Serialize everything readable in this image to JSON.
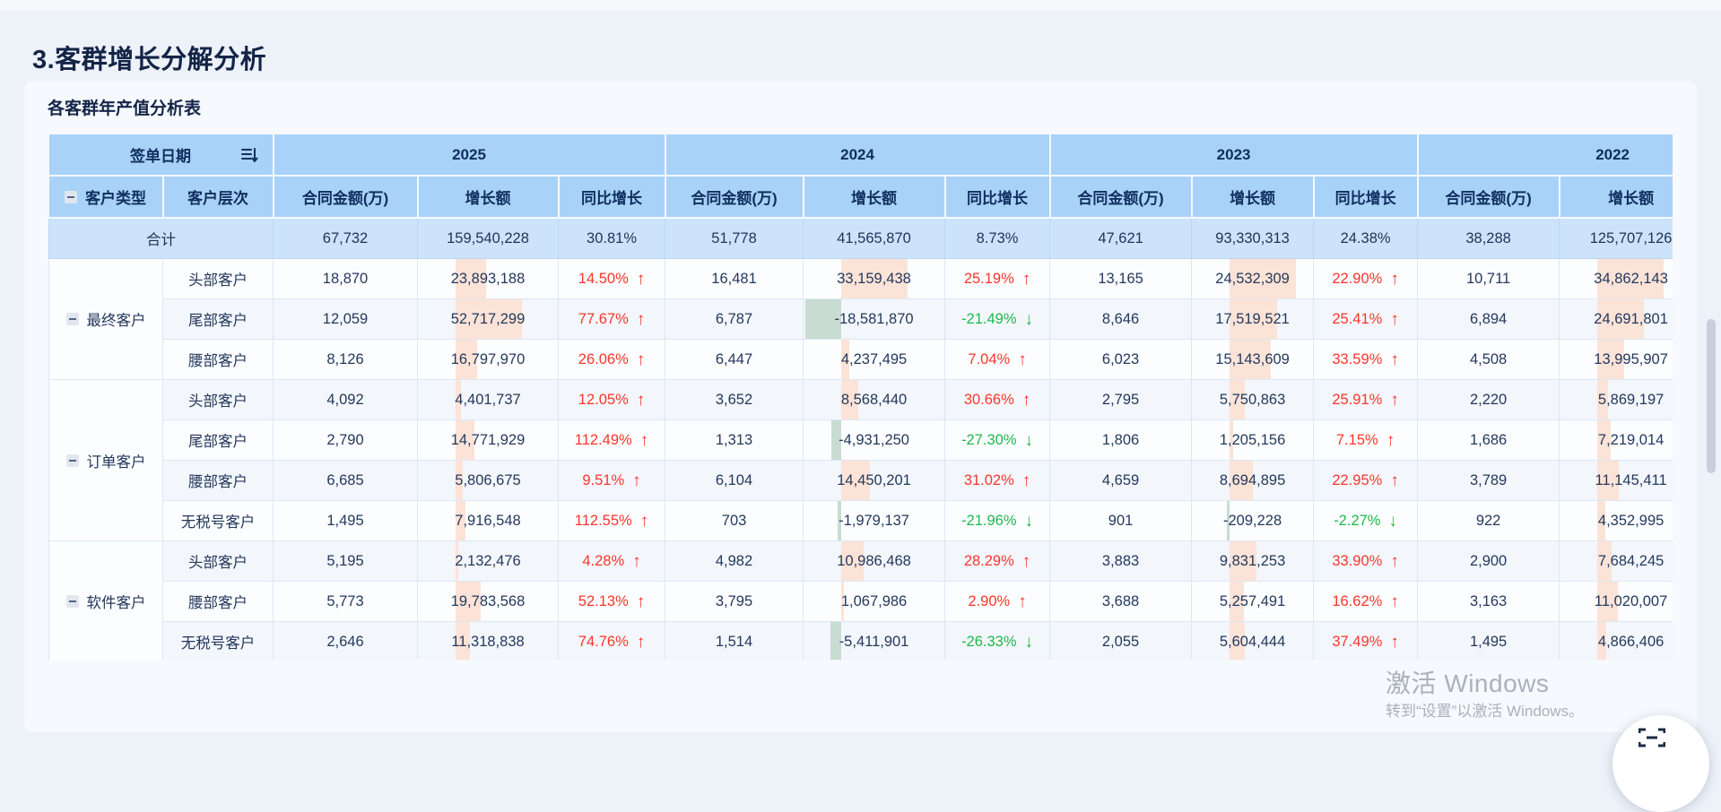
{
  "page": {
    "title": "3.客群增长分解分析"
  },
  "card": {
    "subtitle": "各客群年产值分析表"
  },
  "table": {
    "sign_date_label": "签单日期",
    "sort_icon": "sort-descending-icon",
    "collapse_icon": "minus",
    "years": [
      "2025",
      "2024",
      "2023",
      "2022"
    ],
    "sub_headers": {
      "type": "客户类型",
      "level": "客户层次",
      "amount": "合同金额(万)",
      "growth": "增长额",
      "yoy": "同比增长"
    },
    "total_label": "合计",
    "total_row": [
      {
        "amount": "67,732",
        "growth": "159,540,228",
        "yoy": "30.81%"
      },
      {
        "amount": "51,778",
        "growth": "41,565,870",
        "yoy": "8.73%"
      },
      {
        "amount": "47,621",
        "growth": "93,330,313",
        "yoy": "24.38%"
      },
      {
        "amount": "38,288",
        "growth": "125,707,126",
        "yoy": ""
      }
    ],
    "groups": [
      {
        "type": "最终客户",
        "rows": [
          {
            "level": "头部客户",
            "cells": [
              {
                "amount": "18,870",
                "growth": "23,893,188",
                "yoy": "14.50%",
                "dir": "up"
              },
              {
                "amount": "16,481",
                "growth": "33,159,438",
                "yoy": "25.19%",
                "dir": "up"
              },
              {
                "amount": "13,165",
                "growth": "24,532,309",
                "yoy": "22.90%",
                "dir": "up"
              },
              {
                "amount": "10,711",
                "growth": "34,862,143"
              }
            ]
          },
          {
            "level": "尾部客户",
            "cells": [
              {
                "amount": "12,059",
                "growth": "52,717,299",
                "yoy": "77.67%",
                "dir": "up"
              },
              {
                "amount": "6,787",
                "growth": "-18,581,870",
                "yoy": "-21.49%",
                "dir": "down"
              },
              {
                "amount": "8,646",
                "growth": "17,519,521",
                "yoy": "25.41%",
                "dir": "up"
              },
              {
                "amount": "6,894",
                "growth": "24,691,801"
              }
            ]
          },
          {
            "level": "腰部客户",
            "cells": [
              {
                "amount": "8,126",
                "growth": "16,797,970",
                "yoy": "26.06%",
                "dir": "up"
              },
              {
                "amount": "6,447",
                "growth": "4,237,495",
                "yoy": "7.04%",
                "dir": "up"
              },
              {
                "amount": "6,023",
                "growth": "15,143,609",
                "yoy": "33.59%",
                "dir": "up"
              },
              {
                "amount": "4,508",
                "growth": "13,995,907"
              }
            ]
          }
        ]
      },
      {
        "type": "订单客户",
        "rows": [
          {
            "level": "头部客户",
            "cells": [
              {
                "amount": "4,092",
                "growth": "4,401,737",
                "yoy": "12.05%",
                "dir": "up"
              },
              {
                "amount": "3,652",
                "growth": "8,568,440",
                "yoy": "30.66%",
                "dir": "up"
              },
              {
                "amount": "2,795",
                "growth": "5,750,863",
                "yoy": "25.91%",
                "dir": "up"
              },
              {
                "amount": "2,220",
                "growth": "5,869,197"
              }
            ]
          },
          {
            "level": "尾部客户",
            "cells": [
              {
                "amount": "2,790",
                "growth": "14,771,929",
                "yoy": "112.49%",
                "dir": "up"
              },
              {
                "amount": "1,313",
                "growth": "-4,931,250",
                "yoy": "-27.30%",
                "dir": "down"
              },
              {
                "amount": "1,806",
                "growth": "1,205,156",
                "yoy": "7.15%",
                "dir": "up"
              },
              {
                "amount": "1,686",
                "growth": "7,219,014"
              }
            ]
          },
          {
            "level": "腰部客户",
            "cells": [
              {
                "amount": "6,685",
                "growth": "5,806,675",
                "yoy": "9.51%",
                "dir": "up"
              },
              {
                "amount": "6,104",
                "growth": "14,450,201",
                "yoy": "31.02%",
                "dir": "up"
              },
              {
                "amount": "4,659",
                "growth": "8,694,895",
                "yoy": "22.95%",
                "dir": "up"
              },
              {
                "amount": "3,789",
                "growth": "11,145,411"
              }
            ]
          },
          {
            "level": "无税号客户",
            "cells": [
              {
                "amount": "1,495",
                "growth": "7,916,548",
                "yoy": "112.55%",
                "dir": "up"
              },
              {
                "amount": "703",
                "growth": "-1,979,137",
                "yoy": "-21.96%",
                "dir": "down"
              },
              {
                "amount": "901",
                "growth": "-209,228",
                "yoy": "-2.27%",
                "dir": "down"
              },
              {
                "amount": "922",
                "growth": "4,352,995"
              }
            ]
          }
        ]
      },
      {
        "type": "软件客户",
        "rows": [
          {
            "level": "头部客户",
            "cells": [
              {
                "amount": "5,195",
                "growth": "2,132,476",
                "yoy": "4.28%",
                "dir": "up"
              },
              {
                "amount": "4,982",
                "growth": "10,986,468",
                "yoy": "28.29%",
                "dir": "up"
              },
              {
                "amount": "3,883",
                "growth": "9,831,253",
                "yoy": "33.90%",
                "dir": "up"
              },
              {
                "amount": "2,900",
                "growth": "7,684,245"
              }
            ]
          },
          {
            "level": "腰部客户",
            "cells": [
              {
                "amount": "5,773",
                "growth": "19,783,568",
                "yoy": "52.13%",
                "dir": "up"
              },
              {
                "amount": "3,795",
                "growth": "1,067,986",
                "yoy": "2.90%",
                "dir": "up"
              },
              {
                "amount": "3,688",
                "growth": "5,257,491",
                "yoy": "16.62%",
                "dir": "up"
              },
              {
                "amount": "3,163",
                "growth": "11,020,007"
              }
            ]
          },
          {
            "level": "无税号客户",
            "cells": [
              {
                "amount": "2,646",
                "growth": "11,318,838",
                "yoy": "74.76%",
                "dir": "up"
              },
              {
                "amount": "1,514",
                "growth": "-5,411,901",
                "yoy": "-26.33%",
                "dir": "down"
              },
              {
                "amount": "2,055",
                "growth": "5,604,444",
                "yoy": "37.49%",
                "dir": "up"
              },
              {
                "amount": "1,495",
                "growth": "4,866,406"
              }
            ]
          }
        ]
      }
    ]
  },
  "theme": {
    "header_blue": "#a9d2f8",
    "total_row_blue": "#cde3fb",
    "positive_bar": "#fce3d7",
    "negative_bar": "#c8dcd2",
    "up_red": "#f5372b",
    "down_green": "#1eb94c"
  },
  "watermark": {
    "line1": "激活 Windows",
    "line2": "转到“设置”以激活 Windows。"
  }
}
